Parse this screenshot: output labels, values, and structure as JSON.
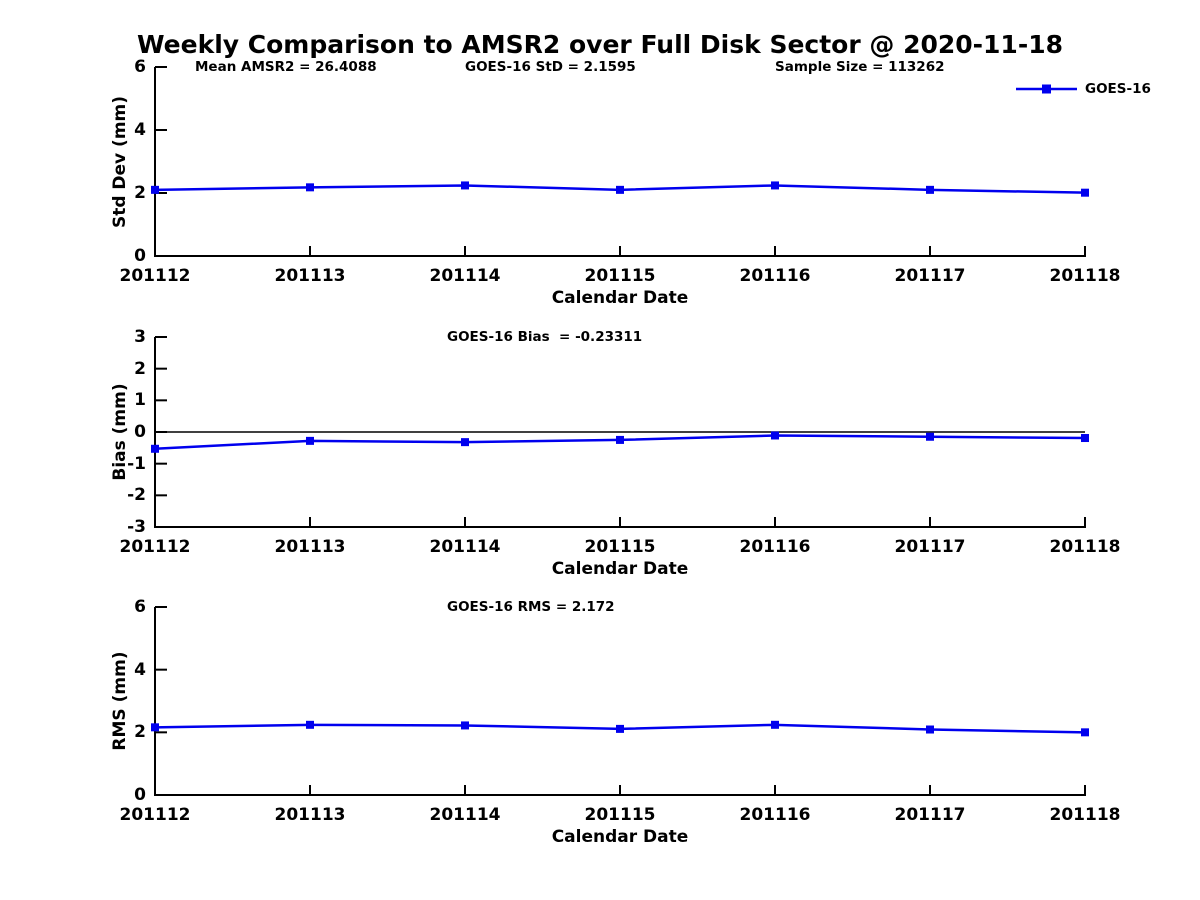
{
  "title": "Weekly Comparison to AMSR2 over Full Disk Sector @ 2020-11-18",
  "colors": {
    "series": "#0000EE",
    "axis": "#000000",
    "background": "#FFFFFF"
  },
  "legend": {
    "label": "GOES-16",
    "position": "top-right"
  },
  "chart_data": [
    {
      "id": "std-dev",
      "type": "line",
      "xlabel": "Calendar Date",
      "ylabel": "Std Dev (mm)",
      "categories": [
        "201112",
        "201113",
        "201114",
        "201115",
        "201116",
        "201117",
        "201118"
      ],
      "series": [
        {
          "name": "GOES-16",
          "values": [
            2.1,
            2.18,
            2.24,
            2.1,
            2.24,
            2.1,
            2.01
          ]
        }
      ],
      "ylim": [
        0,
        6
      ],
      "yticks": [
        0,
        2,
        4,
        6
      ],
      "grid": false,
      "zero_line": false,
      "annotations": [
        "Mean AMSR2 = 26.4088",
        "GOES-16 StD = 2.1595",
        "Sample Size = 113262"
      ],
      "has_legend": true
    },
    {
      "id": "bias",
      "type": "line",
      "xlabel": "Calendar Date",
      "ylabel": "Bias (mm)",
      "categories": [
        "201112",
        "201113",
        "201114",
        "201115",
        "201116",
        "201117",
        "201118"
      ],
      "series": [
        {
          "name": "GOES-16",
          "values": [
            -0.53,
            -0.28,
            -0.32,
            -0.25,
            -0.11,
            -0.15,
            -0.19
          ]
        }
      ],
      "ylim": [
        -3,
        3
      ],
      "yticks": [
        3,
        2,
        1,
        0,
        -1,
        -2,
        -3
      ],
      "grid": false,
      "zero_line": true,
      "annotations": [
        "GOES-16 Bias  = -0.23311"
      ],
      "has_legend": false
    },
    {
      "id": "rms",
      "type": "line",
      "xlabel": "Calendar Date",
      "ylabel": "RMS (mm)",
      "categories": [
        "201112",
        "201113",
        "201114",
        "201115",
        "201116",
        "201117",
        "201118"
      ],
      "series": [
        {
          "name": "GOES-16",
          "values": [
            2.16,
            2.24,
            2.22,
            2.11,
            2.24,
            2.09,
            2.0
          ]
        }
      ],
      "ylim": [
        0,
        6
      ],
      "yticks": [
        0,
        2,
        4,
        6
      ],
      "grid": false,
      "zero_line": false,
      "annotations": [
        "GOES-16 RMS = 2.172"
      ],
      "has_legend": false
    }
  ]
}
